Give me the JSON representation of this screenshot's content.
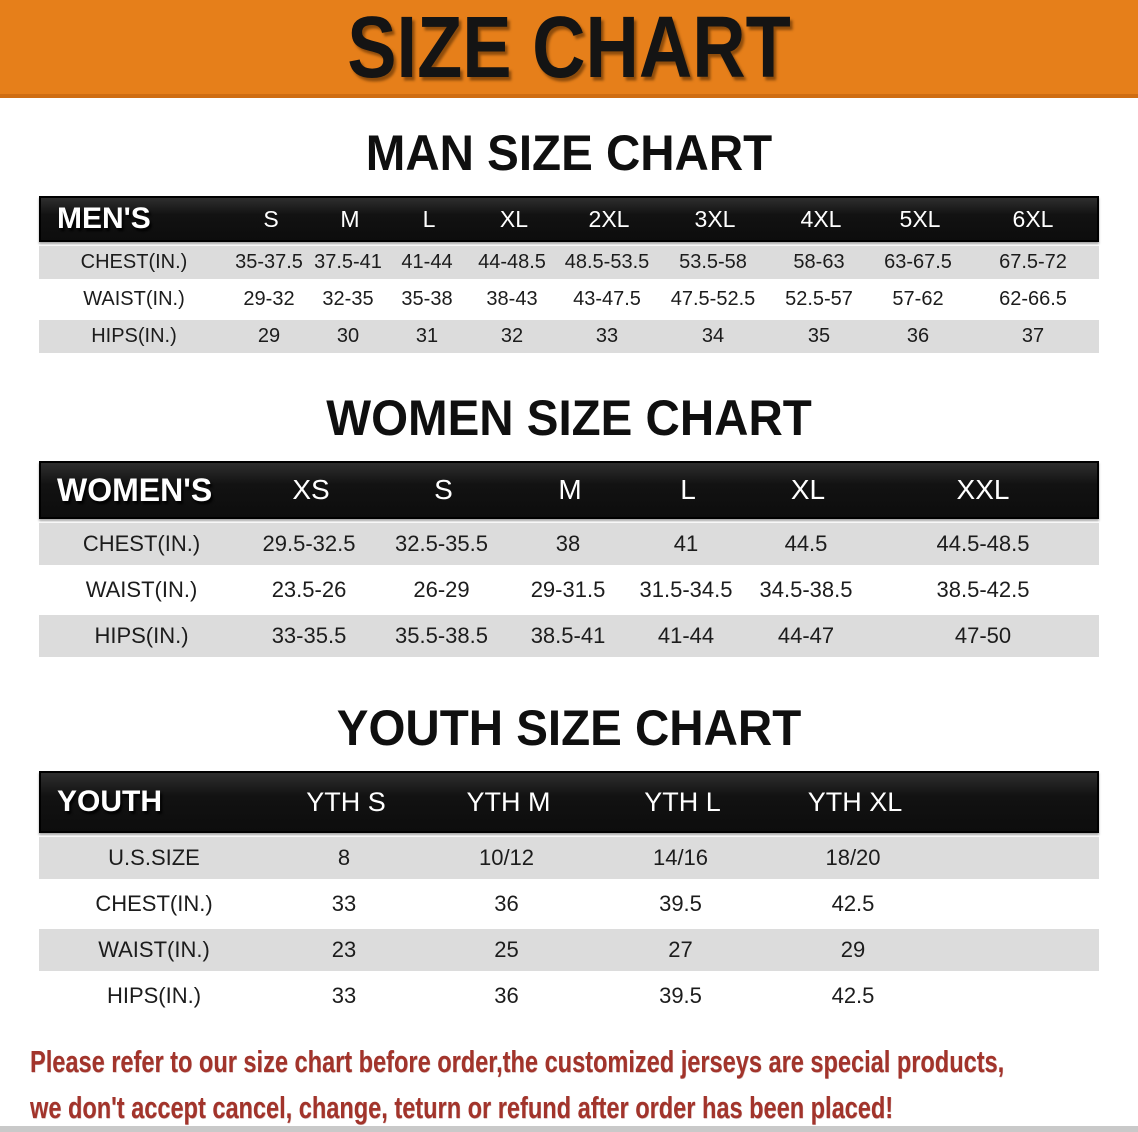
{
  "banner": {
    "title": "SIZE CHART",
    "bg_color": "#E67F1A",
    "title_color": "#141414"
  },
  "sections": [
    {
      "heading": "MAN SIZE CHART",
      "table": {
        "header": [
          "MEN'S",
          "S",
          "M",
          "L",
          "XL",
          "2XL",
          "3XL",
          "4XL",
          "5XL",
          "6XL"
        ],
        "rows": [
          {
            "label": "CHEST(IN.)",
            "values": [
              "35-37.5",
              "37.5-41",
              "41-44",
              "44-48.5",
              "48.5-53.5",
              "53.5-58",
              "58-63",
              "63-67.5",
              "67.5-72"
            ]
          },
          {
            "label": "WAIST(IN.)",
            "values": [
              "29-32",
              "32-35",
              "35-38",
              "38-43",
              "43-47.5",
              "47.5-52.5",
              "52.5-57",
              "57-62",
              "62-66.5"
            ]
          },
          {
            "label": "HIPS(IN.)",
            "values": [
              "29",
              "30",
              "31",
              "32",
              "33",
              "34",
              "35",
              "36",
              "37"
            ]
          }
        ]
      }
    },
    {
      "heading": "WOMEN SIZE CHART",
      "table": {
        "header": [
          "WOMEN'S",
          "XS",
          "S",
          "M",
          "L",
          "XL",
          "XXL"
        ],
        "rows": [
          {
            "label": "CHEST(IN.)",
            "values": [
              "29.5-32.5",
              "32.5-35.5",
              "38",
              "41",
              "44.5",
              "44.5-48.5"
            ]
          },
          {
            "label": "WAIST(IN.)",
            "values": [
              "23.5-26",
              "26-29",
              "29-31.5",
              "31.5-34.5",
              "34.5-38.5",
              "38.5-42.5"
            ]
          },
          {
            "label": "HIPS(IN.)",
            "values": [
              "33-35.5",
              "35.5-38.5",
              "38.5-41",
              "41-44",
              "44-47",
              "47-50"
            ]
          }
        ]
      }
    },
    {
      "heading": "YOUTH SIZE CHART",
      "table": {
        "header": [
          "YOUTH",
          "YTH S",
          "YTH M",
          "YTH L",
          "YTH XL"
        ],
        "rows": [
          {
            "label": "U.S.SIZE",
            "values": [
              "8",
              "10/12",
              "14/16",
              "18/20"
            ]
          },
          {
            "label": "CHEST(IN.)",
            "values": [
              "33",
              "36",
              "39.5",
              "42.5"
            ]
          },
          {
            "label": "WAIST(IN.)",
            "values": [
              "23",
              "25",
              "27",
              "29"
            ]
          },
          {
            "label": "HIPS(IN.)",
            "values": [
              "33",
              "36",
              "39.5",
              "42.5"
            ]
          }
        ]
      }
    }
  ],
  "disclaimer": {
    "line1": "Please refer to our size chart before order,the customized jerseys are special products,",
    "line2": "we don't accept cancel, change, teturn or refund after order has been placed!",
    "color": "#A2342B"
  },
  "colors": {
    "table_header_bg": "#161616",
    "table_header_text": "#FFFFFF",
    "row_alt_bg": "#DCDCDC",
    "row_text": "#1C1C1C"
  }
}
